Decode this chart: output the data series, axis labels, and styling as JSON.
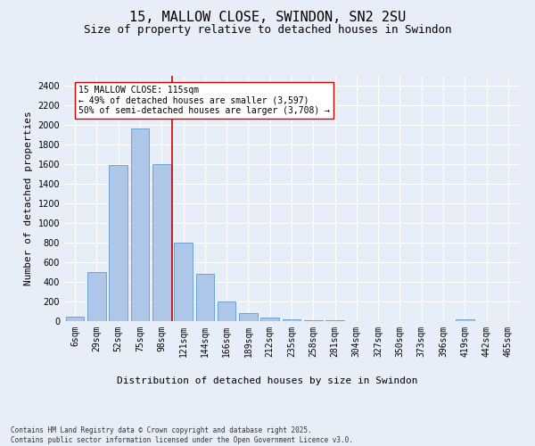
{
  "title1": "15, MALLOW CLOSE, SWINDON, SN2 2SU",
  "title2": "Size of property relative to detached houses in Swindon",
  "xlabel": "Distribution of detached houses by size in Swindon",
  "ylabel": "Number of detached properties",
  "categories": [
    "6sqm",
    "29sqm",
    "52sqm",
    "75sqm",
    "98sqm",
    "121sqm",
    "144sqm",
    "166sqm",
    "189sqm",
    "212sqm",
    "235sqm",
    "258sqm",
    "281sqm",
    "304sqm",
    "327sqm",
    "350sqm",
    "373sqm",
    "396sqm",
    "419sqm",
    "442sqm",
    "465sqm"
  ],
  "values": [
    50,
    500,
    1590,
    1960,
    1600,
    800,
    480,
    200,
    85,
    40,
    18,
    10,
    5,
    3,
    2,
    1,
    0,
    0,
    18,
    0,
    0
  ],
  "bar_color": "#aec6e8",
  "bar_edge_color": "#5b9bd5",
  "vline_color": "#cc0000",
  "annotation_text": "15 MALLOW CLOSE: 115sqm\n← 49% of detached houses are smaller (3,597)\n50% of semi-detached houses are larger (3,708) →",
  "annotation_box_color": "#ffffff",
  "annotation_box_edge_color": "#cc0000",
  "background_color": "#e8eef7",
  "plot_bg_color": "#e8eef7",
  "ylim": [
    0,
    2500
  ],
  "yticks": [
    0,
    200,
    400,
    600,
    800,
    1000,
    1200,
    1400,
    1600,
    1800,
    2000,
    2200,
    2400
  ],
  "footer": "Contains HM Land Registry data © Crown copyright and database right 2025.\nContains public sector information licensed under the Open Government Licence v3.0.",
  "title_fontsize": 11,
  "subtitle_fontsize": 9,
  "tick_fontsize": 7,
  "ylabel_fontsize": 8,
  "xlabel_fontsize": 8,
  "annotation_fontsize": 7,
  "footer_fontsize": 5.5
}
